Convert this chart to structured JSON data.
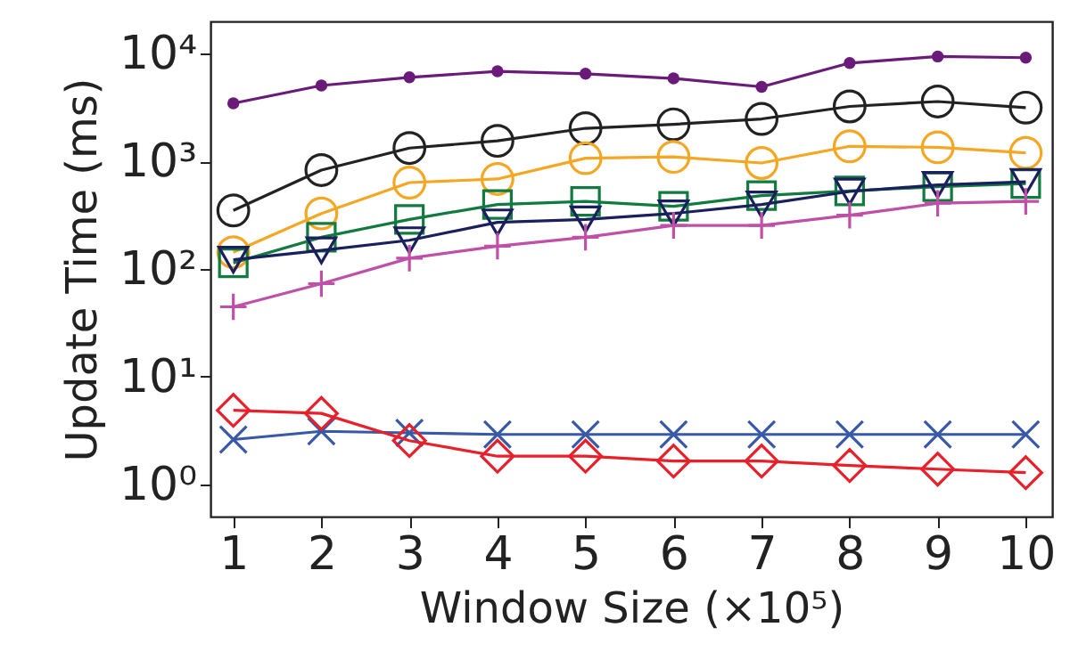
{
  "chart_data": {
    "type": "line",
    "xlabel": "Window Size (×10⁵)",
    "ylabel": "Update Time (ms)",
    "x": [
      1,
      2,
      3,
      4,
      5,
      6,
      7,
      8,
      9,
      10
    ],
    "xlim": [
      0.74,
      10.3
    ],
    "xticks": [
      1,
      2,
      3,
      4,
      5,
      6,
      7,
      8,
      9,
      10
    ],
    "ylim": [
      0.5,
      20000
    ],
    "log": "y",
    "yticks": [
      {
        "value": 1,
        "label": "10⁰"
      },
      {
        "value": 10,
        "label": "10¹"
      },
      {
        "value": 100,
        "label": "10²"
      },
      {
        "value": 1000,
        "label": "10³"
      },
      {
        "value": 10000,
        "label": "10⁴"
      }
    ],
    "grid": false,
    "series": [
      {
        "color": "#6a1b7a",
        "marker": "dot",
        "values": [
          3460,
          5070,
          6040,
          6870,
          6520,
          5900,
          4930,
          8200,
          9440,
          9200
        ]
      },
      {
        "color": "#222222",
        "marker": "circle",
        "values": [
          350,
          830,
          1330,
          1550,
          2030,
          2210,
          2480,
          3240,
          3600,
          3160
        ]
      },
      {
        "color": "#f5a623",
        "marker": "circle",
        "values": [
          143,
          328,
          635,
          686,
          1070,
          1100,
          966,
          1380,
          1350,
          1200
        ]
      },
      {
        "color": "#117a3e",
        "marker": "square",
        "values": [
          114,
          197,
          289,
          397,
          424,
          382,
          481,
          532,
          582,
          621
        ]
      },
      {
        "color": "#1a1f5e",
        "marker": "triangle-down",
        "values": [
          122,
          149,
          185,
          271,
          289,
          328,
          397,
          525,
          604,
          645
        ]
      },
      {
        "color": "#c04fa8",
        "marker": "plus",
        "values": [
          44.5,
          73,
          126,
          163,
          197,
          254,
          254,
          316,
          408,
          424
        ]
      },
      {
        "color": "#3858a8",
        "marker": "x",
        "values": [
          2.6,
          3.1,
          3.0,
          2.9,
          2.9,
          2.9,
          2.9,
          2.9,
          2.9,
          2.9
        ]
      },
      {
        "color": "#e8202a",
        "marker": "diamond",
        "values": [
          4.86,
          4.55,
          2.54,
          1.82,
          1.82,
          1.64,
          1.64,
          1.49,
          1.38,
          1.28
        ]
      }
    ]
  }
}
